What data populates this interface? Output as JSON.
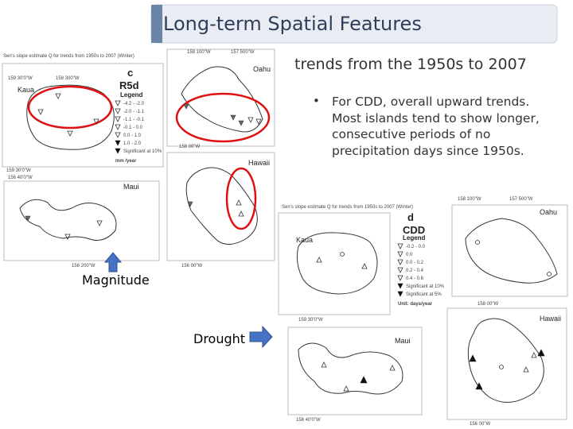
{
  "header": {
    "title": "Long-term Spatial Features"
  },
  "subtitle": "trends from the 1950s to 2007",
  "bullets": [
    "For CDD, overall upward trends. Most islands tend to show longer, consecutive periods of no precipitation days since 1950s."
  ],
  "arrows": {
    "magnitude": "Magnitude",
    "drought": "Drought"
  },
  "figures": [
    {
      "title": "Sen's slope estimate Q for trends from 1950s to 2007 (Winter)",
      "panel": "c",
      "index": "R5d",
      "islands": [
        "Kaua",
        "Oahu",
        "Maui",
        "Hawaii"
      ],
      "coords": [
        "159 30'0\"W",
        "159 300\"W",
        "159 30'0\"W",
        "158 100\"W",
        "157 500\"W",
        "158 00\"W",
        "156 40'0\"W",
        "156 200\"W",
        "156 00\"W"
      ],
      "legend": {
        "title": "Legend",
        "items": [
          "-4.2 - -2.0",
          "-2.0 - -1.1",
          "-1.1 - -0.1",
          "-0.1 - 0.0",
          "0.0 - 1.0",
          "1.0 - 2.0",
          "Significant at 10%"
        ],
        "unit": "mm /year"
      }
    },
    {
      "title": "Sen's slope estimate Q for trends from 1950s to 2007 (Winter)",
      "panel": "d",
      "index": "CDD",
      "islands": [
        "Kaua",
        "Oahu",
        "Maui",
        "Hawaii"
      ],
      "coords": [
        "159 30'0\"W",
        "158 100\"W",
        "157 500\"W",
        "158 00\"W",
        "156 40'0\"W",
        "156 00\"W"
      ],
      "legend": {
        "title": "Legend",
        "items": [
          "-0.2 - 0.0",
          "0.0",
          "0.0 - 0.2",
          "0.2 - 0.4",
          "0.4 - 0.6",
          "Significant at 10%",
          "Significant at 5%"
        ],
        "unit": "Unit: days/year"
      }
    }
  ]
}
